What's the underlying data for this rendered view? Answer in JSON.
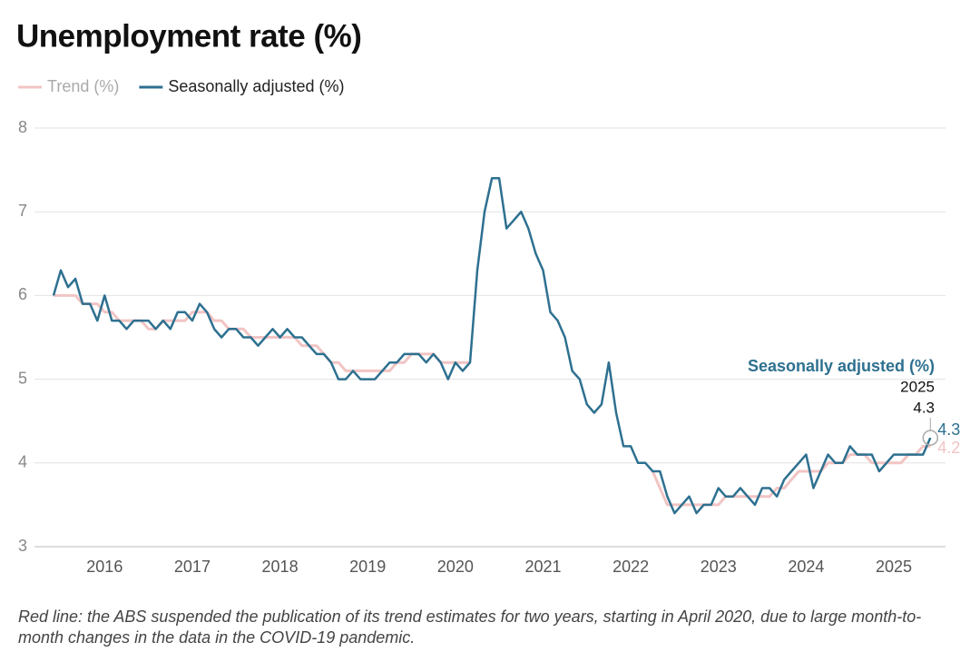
{
  "chart_data": {
    "type": "line",
    "title": "Unemployment rate (%)",
    "note": "Red line: the ABS suspended the publication of its trend estimates for two years, starting in April 2020, due to large month-to-month changes in the data in the COVID-19 pandemic.",
    "x": [
      2015.417,
      2015.5,
      2015.583,
      2015.667,
      2015.75,
      2015.833,
      2015.917,
      2016,
      2016.083,
      2016.167,
      2016.25,
      2016.333,
      2016.417,
      2016.5,
      2016.583,
      2016.667,
      2016.75,
      2016.833,
      2016.917,
      2017,
      2017.083,
      2017.167,
      2017.25,
      2017.333,
      2017.417,
      2017.5,
      2017.583,
      2017.667,
      2017.75,
      2017.833,
      2017.917,
      2018,
      2018.083,
      2018.167,
      2018.25,
      2018.333,
      2018.417,
      2018.5,
      2018.583,
      2018.667,
      2018.75,
      2018.833,
      2018.917,
      2019,
      2019.083,
      2019.167,
      2019.25,
      2019.333,
      2019.417,
      2019.5,
      2019.583,
      2019.667,
      2019.75,
      2019.833,
      2019.917,
      2020,
      2020.083,
      2020.167,
      2020.25,
      2020.333,
      2020.417,
      2020.5,
      2020.583,
      2020.667,
      2020.75,
      2020.833,
      2020.917,
      2021,
      2021.083,
      2021.167,
      2021.25,
      2021.333,
      2021.417,
      2021.5,
      2021.583,
      2021.667,
      2021.75,
      2021.833,
      2021.917,
      2022,
      2022.083,
      2022.167,
      2022.25,
      2022.333,
      2022.417,
      2022.5,
      2022.583,
      2022.667,
      2022.75,
      2022.833,
      2022.917,
      2023,
      2023.083,
      2023.167,
      2023.25,
      2023.333,
      2023.417,
      2023.5,
      2023.583,
      2023.667,
      2023.75,
      2023.833,
      2023.917,
      2024,
      2024.083,
      2024.167,
      2024.25,
      2024.333,
      2024.417,
      2024.5,
      2024.583,
      2024.667,
      2024.75,
      2024.833,
      2024.917,
      2025,
      2025.083,
      2025.167,
      2025.25,
      2025.333,
      2025.417
    ],
    "series": [
      {
        "name": "Trend (%)",
        "color": "#f2c4c4",
        "values": [
          6.0,
          6.0,
          6.0,
          6.0,
          5.9,
          5.9,
          5.9,
          5.8,
          5.8,
          5.7,
          5.7,
          5.7,
          5.7,
          5.6,
          5.6,
          5.7,
          5.7,
          5.7,
          5.7,
          5.8,
          5.8,
          5.8,
          5.7,
          5.7,
          5.6,
          5.6,
          5.6,
          5.5,
          5.5,
          5.5,
          5.5,
          5.5,
          5.5,
          5.5,
          5.4,
          5.4,
          5.4,
          5.3,
          5.2,
          5.2,
          5.1,
          5.1,
          5.1,
          5.1,
          5.1,
          5.1,
          5.1,
          5.2,
          5.2,
          5.3,
          5.3,
          5.3,
          5.3,
          5.2,
          5.2,
          5.2,
          5.2,
          5.2,
          null,
          null,
          null,
          null,
          null,
          null,
          null,
          null,
          null,
          null,
          null,
          null,
          null,
          null,
          null,
          null,
          null,
          null,
          null,
          null,
          null,
          null,
          null,
          null,
          3.9,
          3.7,
          3.5,
          3.5,
          3.5,
          3.5,
          3.5,
          3.5,
          3.5,
          3.5,
          3.6,
          3.6,
          3.6,
          3.6,
          3.6,
          3.6,
          3.6,
          3.7,
          3.7,
          3.8,
          3.9,
          3.9,
          3.9,
          3.9,
          4.0,
          4.0,
          4.0,
          4.1,
          4.1,
          4.1,
          4.0,
          4.0,
          4.0,
          4.0,
          4.0,
          4.1,
          4.1,
          4.2,
          4.2
        ]
      },
      {
        "name": "Seasonally adjusted (%)",
        "color": "#2e7090",
        "values": [
          6.0,
          6.3,
          6.1,
          6.2,
          5.9,
          5.9,
          5.7,
          6.0,
          5.7,
          5.7,
          5.6,
          5.7,
          5.7,
          5.7,
          5.6,
          5.7,
          5.6,
          5.8,
          5.8,
          5.7,
          5.9,
          5.8,
          5.6,
          5.5,
          5.6,
          5.6,
          5.5,
          5.5,
          5.4,
          5.5,
          5.6,
          5.5,
          5.6,
          5.5,
          5.5,
          5.4,
          5.3,
          5.3,
          5.2,
          5.0,
          5.0,
          5.1,
          5.0,
          5.0,
          5.0,
          5.1,
          5.2,
          5.2,
          5.3,
          5.3,
          5.3,
          5.2,
          5.3,
          5.2,
          5.0,
          5.2,
          5.1,
          5.2,
          6.3,
          7.0,
          7.4,
          7.4,
          6.8,
          6.9,
          7.0,
          6.8,
          6.5,
          6.3,
          5.8,
          5.7,
          5.5,
          5.1,
          5.0,
          4.7,
          4.6,
          4.7,
          5.2,
          4.6,
          4.2,
          4.2,
          4.0,
          4.0,
          3.9,
          3.9,
          3.6,
          3.4,
          3.5,
          3.6,
          3.4,
          3.5,
          3.5,
          3.7,
          3.6,
          3.6,
          3.7,
          3.6,
          3.5,
          3.7,
          3.7,
          3.6,
          3.8,
          3.9,
          4.0,
          4.1,
          3.7,
          3.9,
          4.1,
          4.0,
          4.0,
          4.2,
          4.1,
          4.1,
          4.1,
          3.9,
          4.0,
          4.1,
          4.1,
          4.1,
          4.1,
          4.1,
          4.3
        ]
      }
    ],
    "xlim": [
      2015.2,
      2025.59
    ],
    "xticks": [
      2016,
      2017,
      2018,
      2019,
      2020,
      2021,
      2022,
      2023,
      2024,
      2025
    ],
    "ylim": [
      3,
      8
    ],
    "yticks": [
      3,
      4,
      5,
      6,
      7,
      8
    ],
    "grid": true,
    "legend": "top-left"
  }
}
